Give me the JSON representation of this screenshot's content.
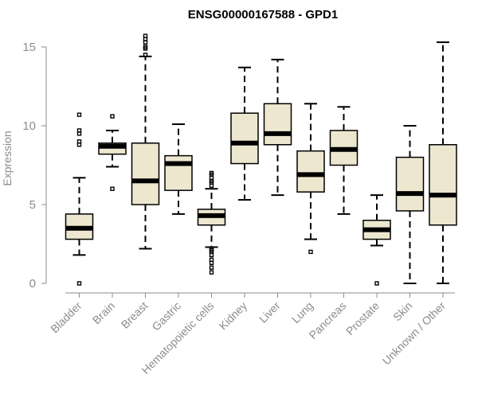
{
  "chart_data": {
    "type": "boxplot",
    "title": "ENSG00000167588 - GPD1",
    "xlabel": "",
    "ylabel": "Expression",
    "ylim": [
      0,
      15
    ],
    "yticks": [
      0,
      5,
      10,
      15
    ],
    "grid": false,
    "colors": {
      "box_fill": "#ede7cf",
      "stroke": "#000000",
      "axis_text": "#8c8c8c"
    },
    "categories": [
      "Bladder",
      "Brain",
      "Breast",
      "Gastric",
      "Hematopoietic cells",
      "Kidney",
      "Liver",
      "Lung",
      "Pancreas",
      "Prostate",
      "Skin",
      "Unknown / Other"
    ],
    "boxes": [
      {
        "name": "Bladder",
        "whisker_low": 1.8,
        "q1": 2.8,
        "median": 3.5,
        "q3": 4.4,
        "whisker_high": 6.7,
        "outliers": [
          0.0,
          8.8,
          9.0,
          9.5,
          9.7,
          10.7
        ]
      },
      {
        "name": "Brain",
        "whisker_low": 7.4,
        "q1": 8.2,
        "median": 8.7,
        "q3": 8.9,
        "whisker_high": 9.7,
        "outliers": [
          6.0,
          10.6
        ]
      },
      {
        "name": "Breast",
        "whisker_low": 2.2,
        "q1": 5.0,
        "median": 6.5,
        "q3": 8.9,
        "whisker_high": 14.4,
        "outliers": [
          14.5,
          14.9,
          15.0,
          15.3,
          15.5,
          15.7
        ]
      },
      {
        "name": "Gastric",
        "whisker_low": 4.4,
        "q1": 5.9,
        "median": 7.6,
        "q3": 8.1,
        "whisker_high": 10.1,
        "outliers": []
      },
      {
        "name": "Hematopoietic cells",
        "whisker_low": 2.3,
        "q1": 3.7,
        "median": 4.3,
        "q3": 4.7,
        "whisker_high": 6.0,
        "outliers": [
          0.7,
          1.0,
          1.3,
          1.5,
          1.8,
          2.0,
          2.1,
          2.2,
          6.2,
          6.4,
          6.5,
          6.7,
          6.9,
          7.0
        ]
      },
      {
        "name": "Kidney",
        "whisker_low": 5.3,
        "q1": 7.6,
        "median": 8.9,
        "q3": 10.8,
        "whisker_high": 13.7,
        "outliers": []
      },
      {
        "name": "Liver",
        "whisker_low": 5.6,
        "q1": 8.8,
        "median": 9.5,
        "q3": 11.4,
        "whisker_high": 14.2,
        "outliers": []
      },
      {
        "name": "Lung",
        "whisker_low": 2.8,
        "q1": 5.8,
        "median": 6.9,
        "q3": 8.4,
        "whisker_high": 11.4,
        "outliers": [
          2.0
        ]
      },
      {
        "name": "Pancreas",
        "whisker_low": 4.4,
        "q1": 7.5,
        "median": 8.5,
        "q3": 9.7,
        "whisker_high": 11.2,
        "outliers": []
      },
      {
        "name": "Prostate",
        "whisker_low": 2.4,
        "q1": 2.8,
        "median": 3.4,
        "q3": 4.0,
        "whisker_high": 5.6,
        "outliers": [
          0.0
        ]
      },
      {
        "name": "Skin",
        "whisker_low": 0.0,
        "q1": 4.6,
        "median": 5.7,
        "q3": 8.0,
        "whisker_high": 10.0,
        "outliers": []
      },
      {
        "name": "Unknown / Other",
        "whisker_low": 0.0,
        "q1": 3.7,
        "median": 5.6,
        "q3": 8.8,
        "whisker_high": 15.3,
        "outliers": []
      }
    ]
  }
}
